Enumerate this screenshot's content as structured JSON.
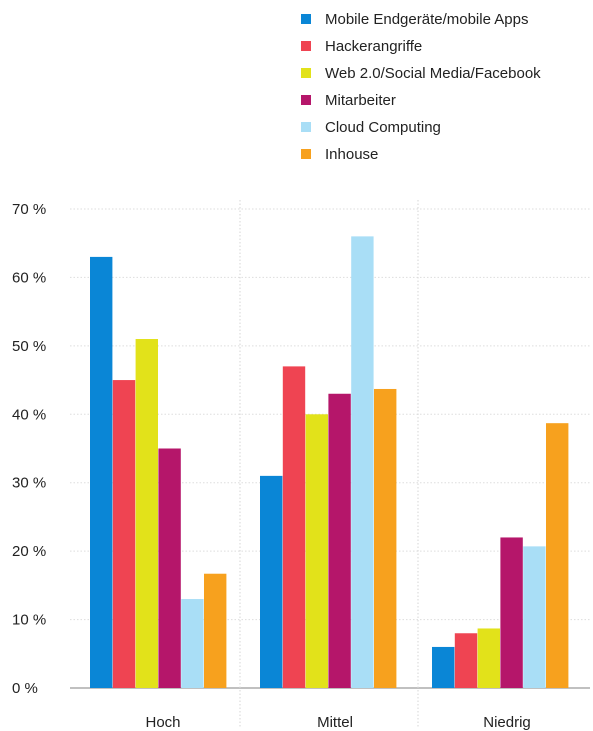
{
  "chart_data": {
    "type": "bar",
    "title": "",
    "xlabel": "",
    "ylabel": "",
    "categories": [
      "Hoch",
      "Mittel",
      "Niedrig"
    ],
    "ylim": [
      0,
      70
    ],
    "yticks": [
      0,
      10,
      20,
      30,
      40,
      50,
      60,
      70
    ],
    "ytick_labels": [
      "0 %",
      "10 %",
      "20 %",
      "30 %",
      "40 %",
      "50 %",
      "60 %",
      "70 %"
    ],
    "grid": true,
    "legend_position": "top-right",
    "series": [
      {
        "name": "Mobile Endgeräte/mobile Apps",
        "color": "#0a86d6",
        "values": [
          63,
          31,
          6
        ]
      },
      {
        "name": "Hackerangriffe",
        "color": "#ef4452",
        "values": [
          45,
          47,
          8
        ]
      },
      {
        "name": "Web 2.0/Social Media/Facebook",
        "color": "#e2e21a",
        "values": [
          51,
          40,
          8.7
        ]
      },
      {
        "name": "Mitarbeiter",
        "color": "#b5166a",
        "values": [
          35,
          43,
          22
        ]
      },
      {
        "name": "Cloud Computing",
        "color": "#a9def6",
        "values": [
          13,
          66,
          20.7
        ]
      },
      {
        "name": "Inhouse",
        "color": "#f7a11e",
        "values": [
          16.7,
          43.7,
          38.7
        ]
      }
    ]
  }
}
